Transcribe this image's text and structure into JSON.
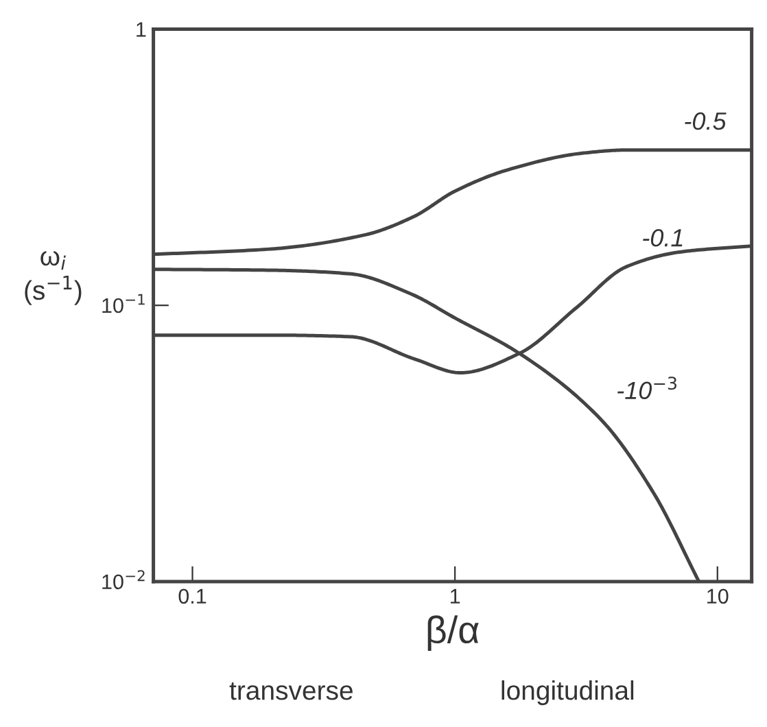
{
  "chart_data": {
    "type": "line",
    "xlabel": "β/α",
    "ylabel": "ω$_{i}$\n(s$^{−1}$)",
    "log": "xy",
    "grid": false,
    "legend": false,
    "marker": "none",
    "line_style": "solid",
    "xlim": [
      0.071,
      13.5
    ],
    "ylim": [
      0.01,
      1
    ],
    "xticks": [
      0.1,
      1,
      10
    ],
    "yticks": [
      {
        "value": 0.01,
        "label": "10$^{−2}$"
      },
      {
        "value": 0.1,
        "label": "10$^{−1}$"
      },
      1
    ],
    "series": [
      {
        "color": "#444444",
        "x": [
          0.071,
          0.2,
          0.455,
          0.7,
          1,
          1.6,
          3.1,
          4.5,
          6.5,
          13.5
        ],
        "values": [
          0.153,
          0.16,
          0.18,
          0.21,
          0.259,
          0.31,
          0.356,
          0.365,
          0.365,
          0.365
        ]
      },
      {
        "color": "#444444",
        "x": [
          0.071,
          0.2,
          0.4,
          0.7,
          1.05,
          1.76,
          2.9,
          4.5,
          7.2,
          13.5
        ],
        "values": [
          0.078,
          0.078,
          0.077,
          0.064,
          0.057,
          0.067,
          0.098,
          0.138,
          0.156,
          0.164
        ]
      },
      {
        "color": "#444444",
        "x": [
          0.071,
          0.2,
          0.4,
          0.68,
          1,
          1.76,
          3.6,
          5.7,
          8.5
        ],
        "values": [
          0.135,
          0.134,
          0.13,
          0.11,
          0.09,
          0.067,
          0.0386,
          0.021,
          0.01
        ]
      }
    ],
    "annotations": [
      {
        "text": "-0.5",
        "x": 6.5,
        "y": 0.365
      },
      {
        "text": "-0.1",
        "x": 4.5,
        "y": 0.138
      },
      {
        "text": "-10$^{−3}$",
        "x": 3.6,
        "y": 0.0386
      },
      "transverse",
      "longitudinal"
    ]
  }
}
